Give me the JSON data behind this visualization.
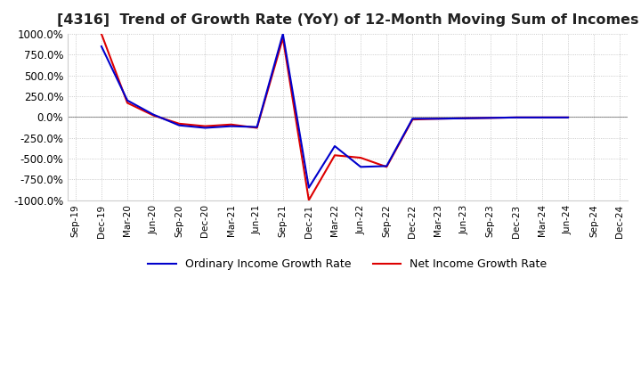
{
  "title": "[4316]  Trend of Growth Rate (YoY) of 12-Month Moving Sum of Incomes",
  "title_fontsize": 11.5,
  "ylim": [
    -1000,
    1000
  ],
  "yticks": [
    1000,
    750,
    500,
    250,
    0,
    -250,
    -500,
    -750,
    -1000
  ],
  "ytick_labels": [
    "1000.0%",
    "750.0%",
    "500.0%",
    "250.0%",
    "0.0%",
    "-250.0%",
    "-500.0%",
    "-750.0%",
    "-1000.0%"
  ],
  "background_color": "#ffffff",
  "grid_color": "#bbbbbb",
  "ordinary_color": "#0000cc",
  "net_color": "#dd0000",
  "legend_ordinary": "Ordinary Income Growth Rate",
  "legend_net": "Net Income Growth Rate",
  "x_labels": [
    "Sep-19",
    "Dec-19",
    "Mar-20",
    "Jun-20",
    "Sep-20",
    "Dec-20",
    "Mar-21",
    "Jun-21",
    "Sep-21",
    "Dec-21",
    "Mar-22",
    "Jun-22",
    "Sep-22",
    "Dec-22",
    "Mar-23",
    "Jun-23",
    "Sep-23",
    "Dec-23",
    "Mar-24",
    "Jun-24",
    "Sep-24",
    "Dec-24"
  ],
  "ordinary_y": [
    null,
    850,
    200,
    30,
    -100,
    -130,
    -110,
    -120,
    1000,
    -850,
    -350,
    -600,
    -590,
    -20,
    -20,
    -15,
    -10,
    -5,
    -5,
    -5,
    null,
    null
  ],
  "net_y": [
    null,
    1000,
    170,
    20,
    -80,
    -110,
    -90,
    -130,
    950,
    -1000,
    -460,
    -490,
    -600,
    -30,
    -20,
    -15,
    -10,
    -5,
    -5,
    -5,
    null,
    null
  ]
}
